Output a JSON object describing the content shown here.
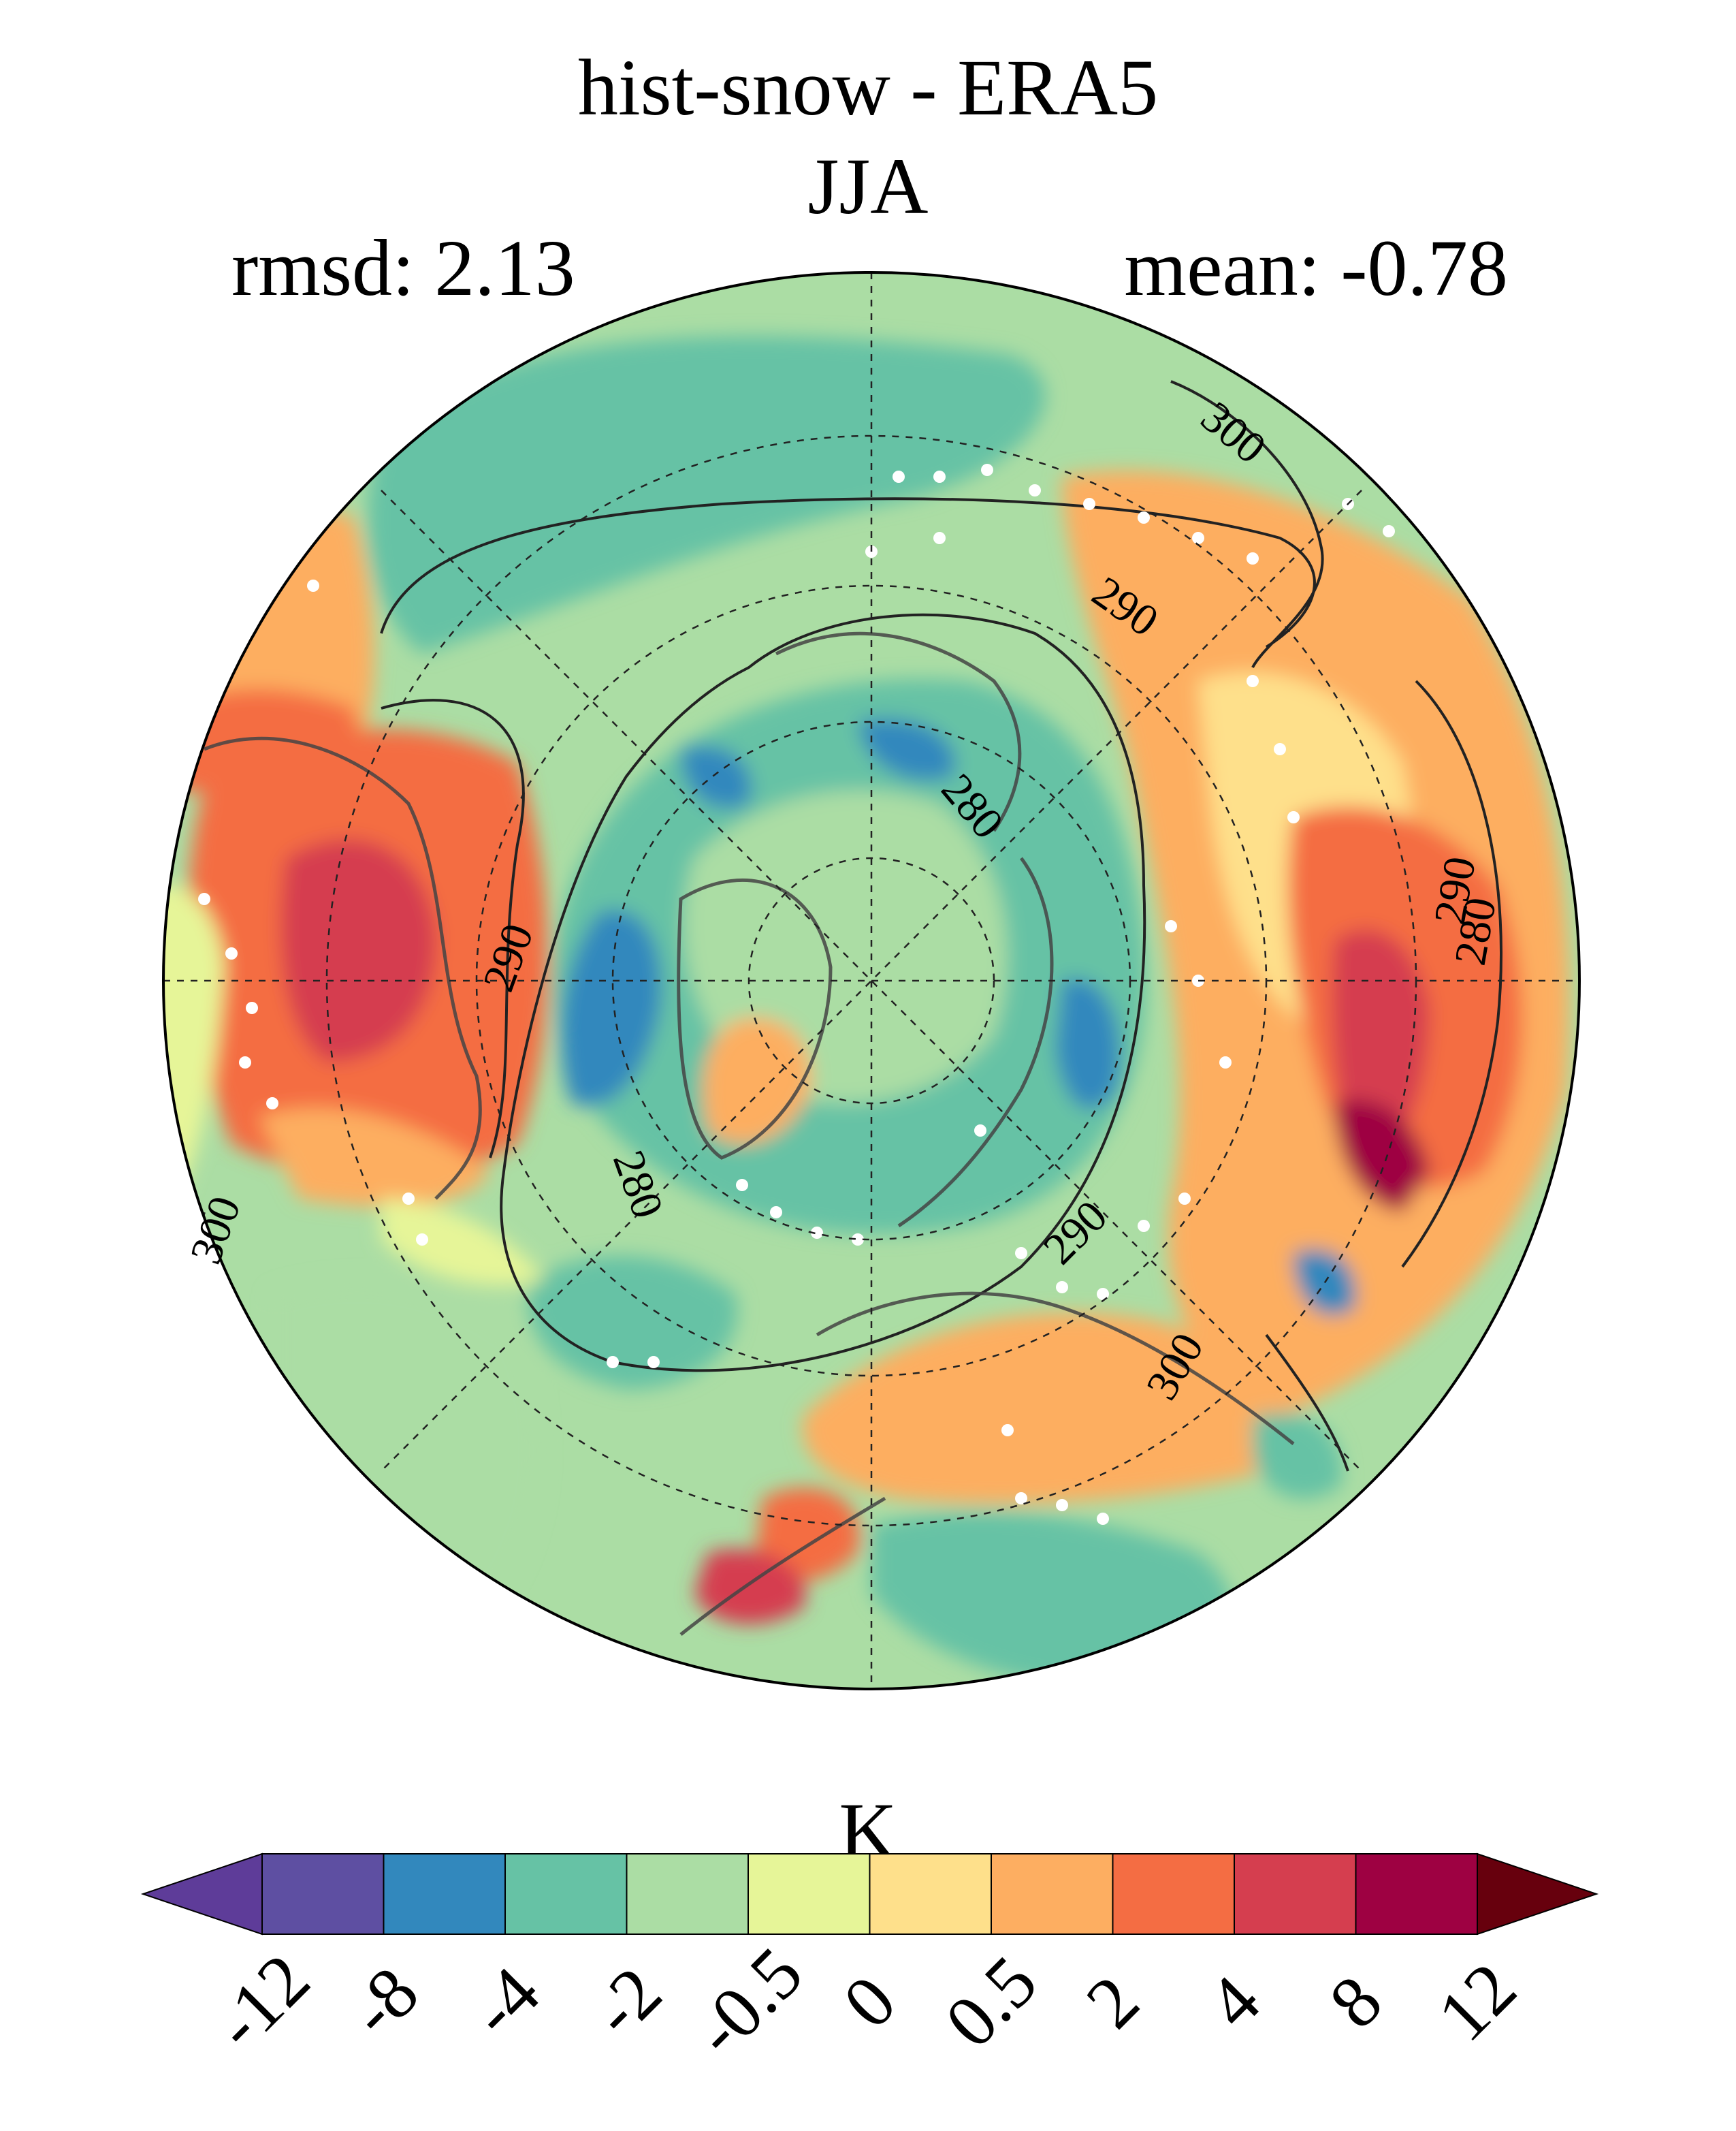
{
  "title": "hist-snow - ERA5",
  "season": "JJA",
  "stats": {
    "rmsd": "rmsd: 2.13",
    "mean": "mean: -0.78"
  },
  "colorbar": {
    "unit": "K",
    "ticks": [
      "-12",
      "-8",
      "-4",
      "-2",
      "-0.5",
      "0",
      "0.5",
      "2",
      "4",
      "8",
      "12"
    ],
    "colors": [
      "#5e3c99",
      "#5e4fa2",
      "#3288bd",
      "#66c2a5",
      "#abdda4",
      "#e6f598",
      "#fee08b",
      "#fdae61",
      "#f46d43",
      "#d53e4f",
      "#9e0142",
      "#67000d"
    ],
    "extend": "both"
  },
  "contour_labels": [
    "300",
    "290",
    "280",
    "280",
    "290",
    "290",
    "280",
    "290",
    "300",
    "300"
  ],
  "map": {
    "projection": "north-polar-stereographic",
    "stippling": "white dots",
    "contours": "absolute temperature (K)"
  }
}
